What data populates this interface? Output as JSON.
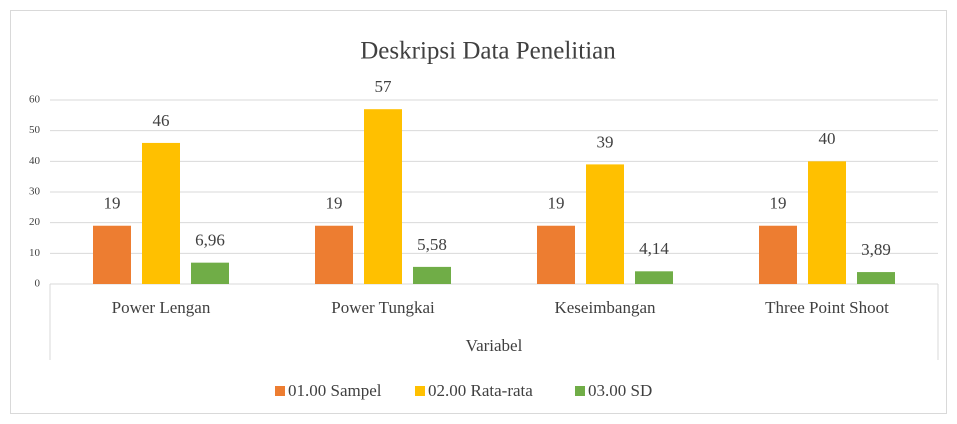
{
  "chart_data": {
    "type": "bar",
    "title": "Deskripsi Data Penelitian",
    "x_label": "Variabel",
    "categories": [
      "Power Lengan",
      "Power Tungkai",
      "Keseimbangan",
      "Three Point Shoot"
    ],
    "series": [
      {
        "name": "01.00 Sampel",
        "color": "#ed7d31",
        "values": [
          19,
          19,
          19,
          19
        ]
      },
      {
        "name": "02.00 Rata-rata",
        "color": "#ffc000",
        "values": [
          46,
          57,
          39,
          40
        ]
      },
      {
        "name": "03.00 SD",
        "color": "#70ad47",
        "values": [
          6.96,
          5.58,
          4.14,
          3.89
        ],
        "value_labels": [
          "6,96",
          "5,58",
          "4,14",
          "3,89"
        ]
      }
    ],
    "ylim": [
      0,
      60
    ],
    "yticks": [
      0,
      10,
      20,
      30,
      40,
      50,
      60
    ],
    "grid": true,
    "legend": "bottom"
  }
}
